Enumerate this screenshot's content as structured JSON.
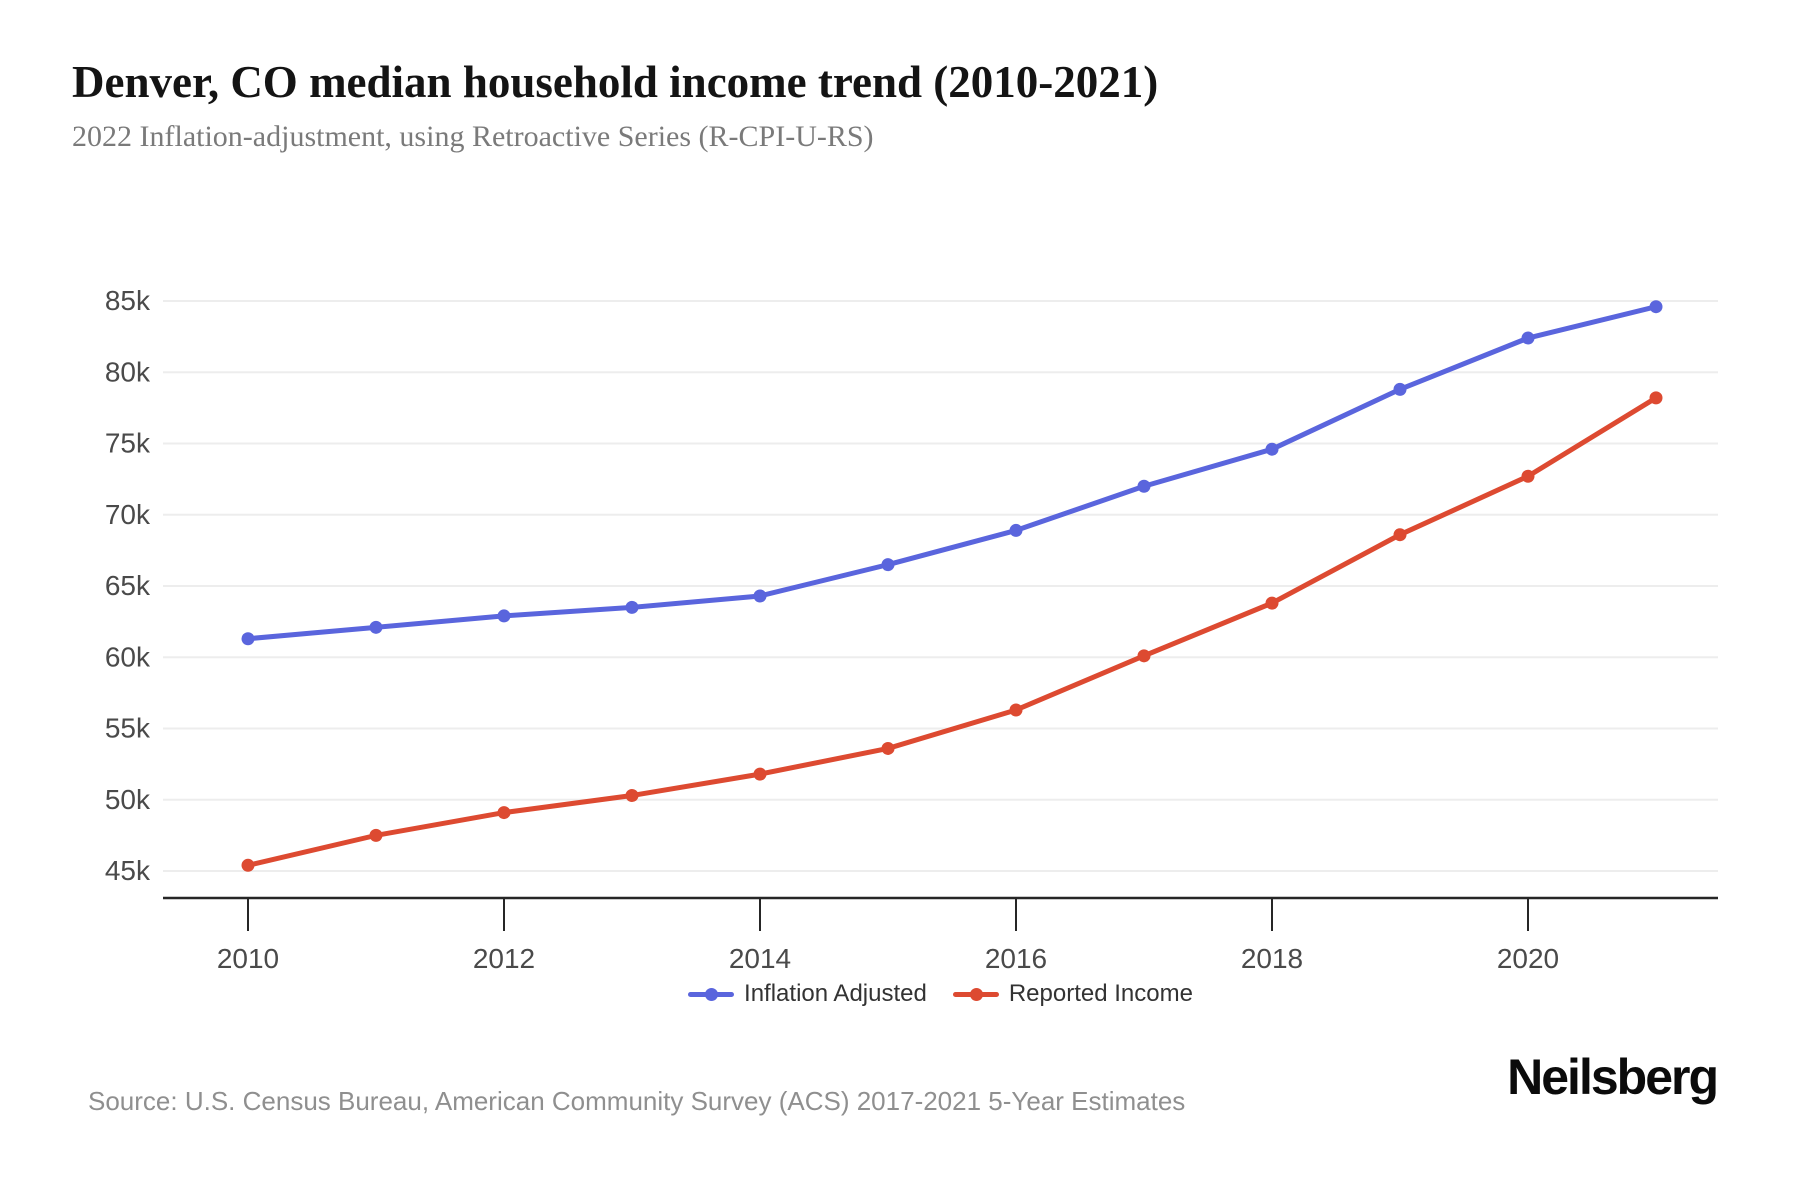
{
  "header": {
    "title": "Denver, CO median household income trend (2010-2021)",
    "subtitle": "2022 Inflation-adjustment, using Retroactive Series (R-CPI-U-RS)"
  },
  "chart_data": {
    "type": "line",
    "x": [
      2010,
      2011,
      2012,
      2013,
      2014,
      2015,
      2016,
      2017,
      2018,
      2019,
      2020,
      2021
    ],
    "series": [
      {
        "name": "Inflation Adjusted",
        "color": "#5a65dd",
        "values": [
          61300,
          62100,
          62900,
          63500,
          64300,
          66500,
          68900,
          72000,
          74600,
          78800,
          82400,
          84600
        ]
      },
      {
        "name": "Reported Income",
        "color": "#dd4a31",
        "values": [
          45400,
          47500,
          49100,
          50300,
          51800,
          53600,
          56300,
          60100,
          63800,
          68600,
          72700,
          78200
        ]
      }
    ],
    "y_ticks": {
      "values": [
        45000,
        50000,
        55000,
        60000,
        65000,
        70000,
        75000,
        80000,
        85000
      ],
      "labels": [
        "45k",
        "50k",
        "55k",
        "60k",
        "65k",
        "70k",
        "75k",
        "80k",
        "85k"
      ]
    },
    "x_ticks": {
      "values": [
        2010,
        2012,
        2014,
        2016,
        2018,
        2020
      ],
      "labels": [
        "2010",
        "2012",
        "2014",
        "2016",
        "2018",
        "2020"
      ]
    },
    "ylim": [
      43000,
      86500
    ],
    "grid": "horizontal-only",
    "legend_position": "bottom-center"
  },
  "colors": {
    "grid": "#ededed",
    "axis": "#262626",
    "tick_label": "#4a4a4a",
    "legend_text": "#333333"
  },
  "footer": {
    "source": "Source: U.S. Census Bureau, American Community Survey (ACS) 2017-2021 5-Year Estimates",
    "brand": "Neilsberg"
  }
}
